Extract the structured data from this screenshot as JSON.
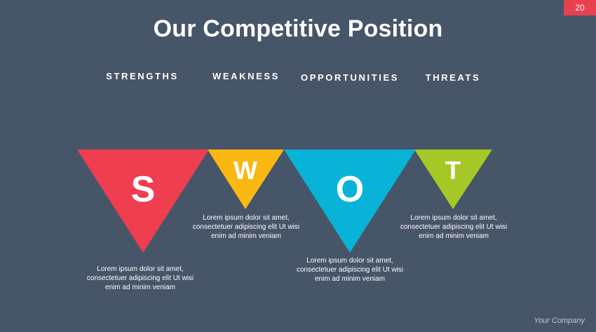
{
  "slide": {
    "page_number": "20",
    "title": "Our Competitive Position",
    "footer": "Your Company"
  },
  "swot": [
    {
      "heading": "STRENGTHS",
      "letter": "S",
      "color": "#ef3e4f",
      "description": "Lorem ipsum dolor sit amet,\nconsectetuer adipiscing elit Ut wisi\nenim ad minim veniam"
    },
    {
      "heading": "WEAKNESS",
      "letter": "W",
      "color": "#fbb812",
      "description": "Lorem ipsum dolor sit amet,\nconsectetuer adipiscing elit Ut wisi\nenim ad minim veniam"
    },
    {
      "heading": "OPPORTUNITIES",
      "letter": "O",
      "color": "#09b3d8",
      "description": "Lorem ipsum dolor sit amet,\nconsectetuer adipiscing elit Ut wisi\nenim ad minim veniam"
    },
    {
      "heading": "THREATS",
      "letter": "T",
      "color": "#a5c827",
      "description": "Lorem ipsum dolor sit amet,\nconsectetuer adipiscing elit Ut wisi\nenim ad minim veniam"
    }
  ]
}
